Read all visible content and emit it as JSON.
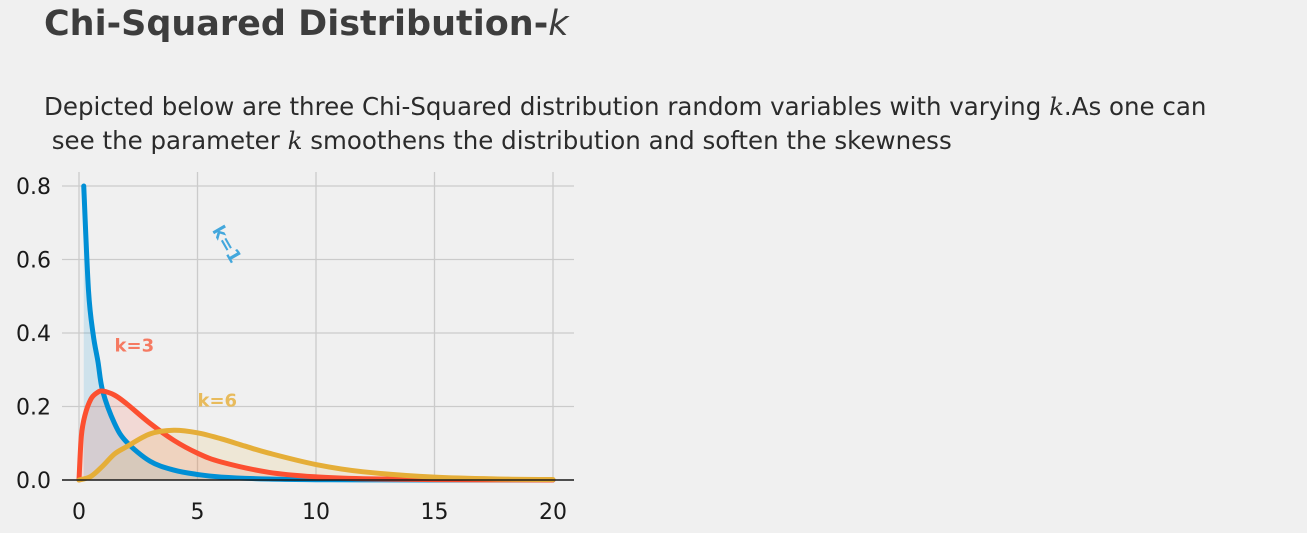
{
  "title": {
    "text": "Chi-Squared Distribution-",
    "symbol": "k"
  },
  "subtitle": {
    "line1_a": "Depicted below are three Chi-Squared distribution random variables with varying ",
    "line1_k": "k",
    "line1_b": ".As one can",
    "line2_a": " see the parameter ",
    "line2_k": "k",
    "line2_b": " smoothens the distribution and soften the skewness"
  },
  "chart_data": {
    "type": "line",
    "title": "Chi-Squared Distribution-k",
    "xlabel": "",
    "ylabel": "",
    "xlim": [
      0,
      20
    ],
    "ylim": [
      0,
      0.8
    ],
    "xticks": [
      "0",
      "5",
      "10",
      "15",
      "20"
    ],
    "yticks": [
      "0.0",
      "0.2",
      "0.4",
      "0.6",
      "0.8"
    ],
    "grid": true,
    "fill_under": true,
    "series": [
      {
        "name": "k=1",
        "k": 1,
        "color": "#008fd5",
        "x": [
          0.2,
          0.4,
          0.6,
          0.8,
          1,
          1.5,
          2,
          3,
          4,
          5,
          6,
          8,
          10,
          12,
          15,
          20
        ],
        "y": [
          0.8,
          0.516,
          0.395,
          0.322,
          0.242,
          0.154,
          0.104,
          0.051,
          0.027,
          0.015,
          0.008,
          0.0026,
          0.00085,
          0.00029,
          5e-05,
          4e-06
        ],
        "label": {
          "text": "k=1",
          "x": 5.6,
          "y": 0.68,
          "rotation": 60
        }
      },
      {
        "name": "k=3",
        "k": 3,
        "color": "#fc4f30",
        "x": [
          0,
          0.1,
          0.25,
          0.5,
          0.75,
          1,
          1.5,
          2,
          3,
          4,
          5,
          6,
          8,
          10,
          12,
          15,
          20
        ],
        "y": [
          0,
          0.12,
          0.176,
          0.22,
          0.237,
          0.242,
          0.231,
          0.208,
          0.154,
          0.108,
          0.073,
          0.049,
          0.021,
          0.0085,
          0.0034,
          0.0009,
          0.0001
        ],
        "label": {
          "text": "k=3",
          "x": 1.5,
          "y": 0.35
        }
      },
      {
        "name": "k=6",
        "k": 6,
        "color": "#e5ae38",
        "x": [
          0,
          0.5,
          1,
          1.5,
          2,
          3,
          4,
          5,
          6,
          7,
          8,
          10,
          12,
          15,
          18,
          20
        ],
        "y": [
          0,
          0.0097,
          0.0379,
          0.0708,
          0.0902,
          0.1255,
          0.1353,
          0.1283,
          0.112,
          0.0923,
          0.0733,
          0.0421,
          0.0223,
          0.0078,
          0.0025,
          0.0012
        ],
        "label": {
          "text": "k=6",
          "x": 5.0,
          "y": 0.2
        }
      }
    ]
  },
  "colors": {
    "background": "#f0f0f0",
    "grid": "#cbcbcb",
    "axis": "#1a1a1a",
    "k1_label": "#43a7dc",
    "k3_label": "#f57a62",
    "k6_label": "#e8bb5c"
  }
}
